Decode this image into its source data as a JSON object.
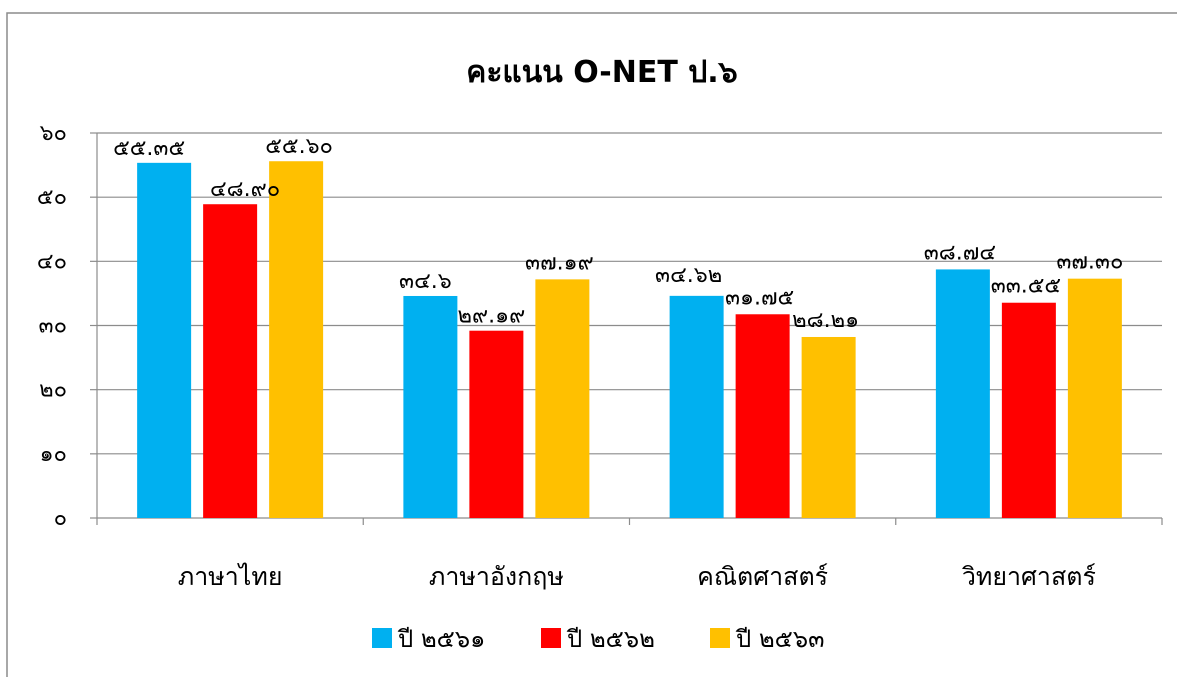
{
  "chart_data": {
    "type": "bar",
    "title": "คะแนน O-NET ป.๖",
    "xlabel": "",
    "ylabel": "",
    "ylim": [
      0,
      60
    ],
    "yticks": [
      {
        "value": 0,
        "label": "๐"
      },
      {
        "value": 10,
        "label": "๑๐"
      },
      {
        "value": 20,
        "label": "๒๐"
      },
      {
        "value": 30,
        "label": "๓๐"
      },
      {
        "value": 40,
        "label": "๔๐"
      },
      {
        "value": 50,
        "label": "๕๐"
      },
      {
        "value": 60,
        "label": "๖๐"
      }
    ],
    "grid": true,
    "legend_position": "bottom",
    "categories": [
      "ภาษาไทย",
      "ภาษาอังกฤษ",
      "คณิตศาสตร์",
      "วิทยาศาสตร์"
    ],
    "series": [
      {
        "name": "ปี ๒๕๖๑",
        "color": "#00B0F0",
        "values": [
          55.35,
          34.6,
          34.62,
          38.74
        ],
        "labels": [
          "๕๕.๓๕",
          "๓๔.๖",
          "๓๔.๖๒",
          "๓๘.๗๔"
        ]
      },
      {
        "name": "ปี ๒๕๖๒",
        "color": "#FF0000",
        "values": [
          48.9,
          29.19,
          31.75,
          33.55
        ],
        "labels": [
          "๔๘.๙๐",
          "๒๙.๑๙",
          "๓๑.๗๕",
          "๓๓.๕๕"
        ]
      },
      {
        "name": "ปี ๒๕๖๓",
        "color": "#FFC000",
        "values": [
          55.6,
          37.19,
          28.21,
          37.3
        ],
        "labels": [
          "๕๕.๖๐",
          "๓๗.๑๙",
          "๒๘.๒๑",
          "๓๗.๓๐"
        ]
      }
    ]
  }
}
